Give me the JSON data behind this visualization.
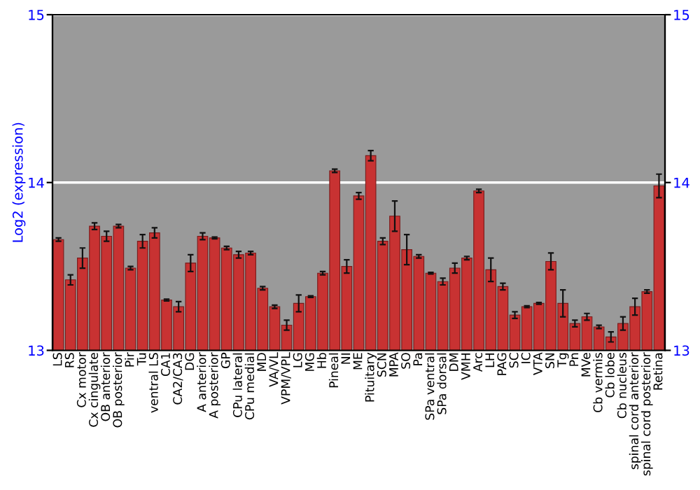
{
  "chart_data": {
    "type": "bar",
    "ylabel": "Log2 (expression)",
    "categories": [
      "LS",
      "RS",
      "Cx motor",
      "Cx cingulate",
      "OB anterior",
      "OB posterior",
      "Pir",
      "Tu",
      "ventral LS",
      "CA1",
      "CA2/CA3",
      "DG",
      "A anterior",
      "A posterior",
      "GP",
      "CPu lateral",
      "CPu medial",
      "MD",
      "VA/VL",
      "VPM/VPL",
      "LG",
      "MG",
      "Hb",
      "Pineal",
      "NI",
      "ME",
      "Pituitary",
      "SCN",
      "MPA",
      "SO",
      "Pa",
      "SPa ventral",
      "SPa dorsal",
      "DM",
      "VMH",
      "Arc",
      "LH",
      "PAG",
      "SC",
      "IC",
      "VTA",
      "SN",
      "Tg",
      "Pn",
      "MVe",
      "Cb vermis",
      "Cb lobe",
      "Cb nucleus",
      "spinal cord anterior",
      "spinal cord posterior",
      "Retina"
    ],
    "values": [
      13.66,
      13.42,
      13.55,
      13.74,
      13.68,
      13.74,
      13.49,
      13.65,
      13.7,
      13.3,
      13.26,
      13.52,
      13.68,
      13.67,
      13.61,
      13.57,
      13.58,
      13.37,
      13.26,
      13.15,
      13.28,
      13.32,
      13.46,
      14.07,
      13.5,
      13.92,
      14.16,
      13.65,
      13.8,
      13.6,
      13.56,
      13.46,
      13.41,
      13.49,
      13.55,
      13.95,
      13.48,
      13.38,
      13.21,
      13.26,
      13.28,
      13.53,
      13.28,
      13.16,
      13.2,
      13.14,
      13.08,
      13.16,
      13.26,
      13.35,
      13.98
    ],
    "errors": [
      0.01,
      0.03,
      0.06,
      0.02,
      0.03,
      0.01,
      0.01,
      0.04,
      0.03,
      0.005,
      0.03,
      0.05,
      0.02,
      0.005,
      0.01,
      0.02,
      0.01,
      0.01,
      0.01,
      0.03,
      0.05,
      0.005,
      0.01,
      0.01,
      0.04,
      0.02,
      0.03,
      0.02,
      0.09,
      0.09,
      0.01,
      0.005,
      0.02,
      0.03,
      0.01,
      0.01,
      0.07,
      0.02,
      0.02,
      0.005,
      0.005,
      0.05,
      0.08,
      0.02,
      0.02,
      0.01,
      0.03,
      0.04,
      0.05,
      0.01,
      0.07
    ],
    "color": "#c83232",
    "ylim": [
      13,
      15
    ],
    "yticks": [
      13,
      14,
      15
    ],
    "y2lim": [
      13,
      15
    ],
    "y2ticks": [
      13,
      14,
      15
    ],
    "grid": "y"
  }
}
